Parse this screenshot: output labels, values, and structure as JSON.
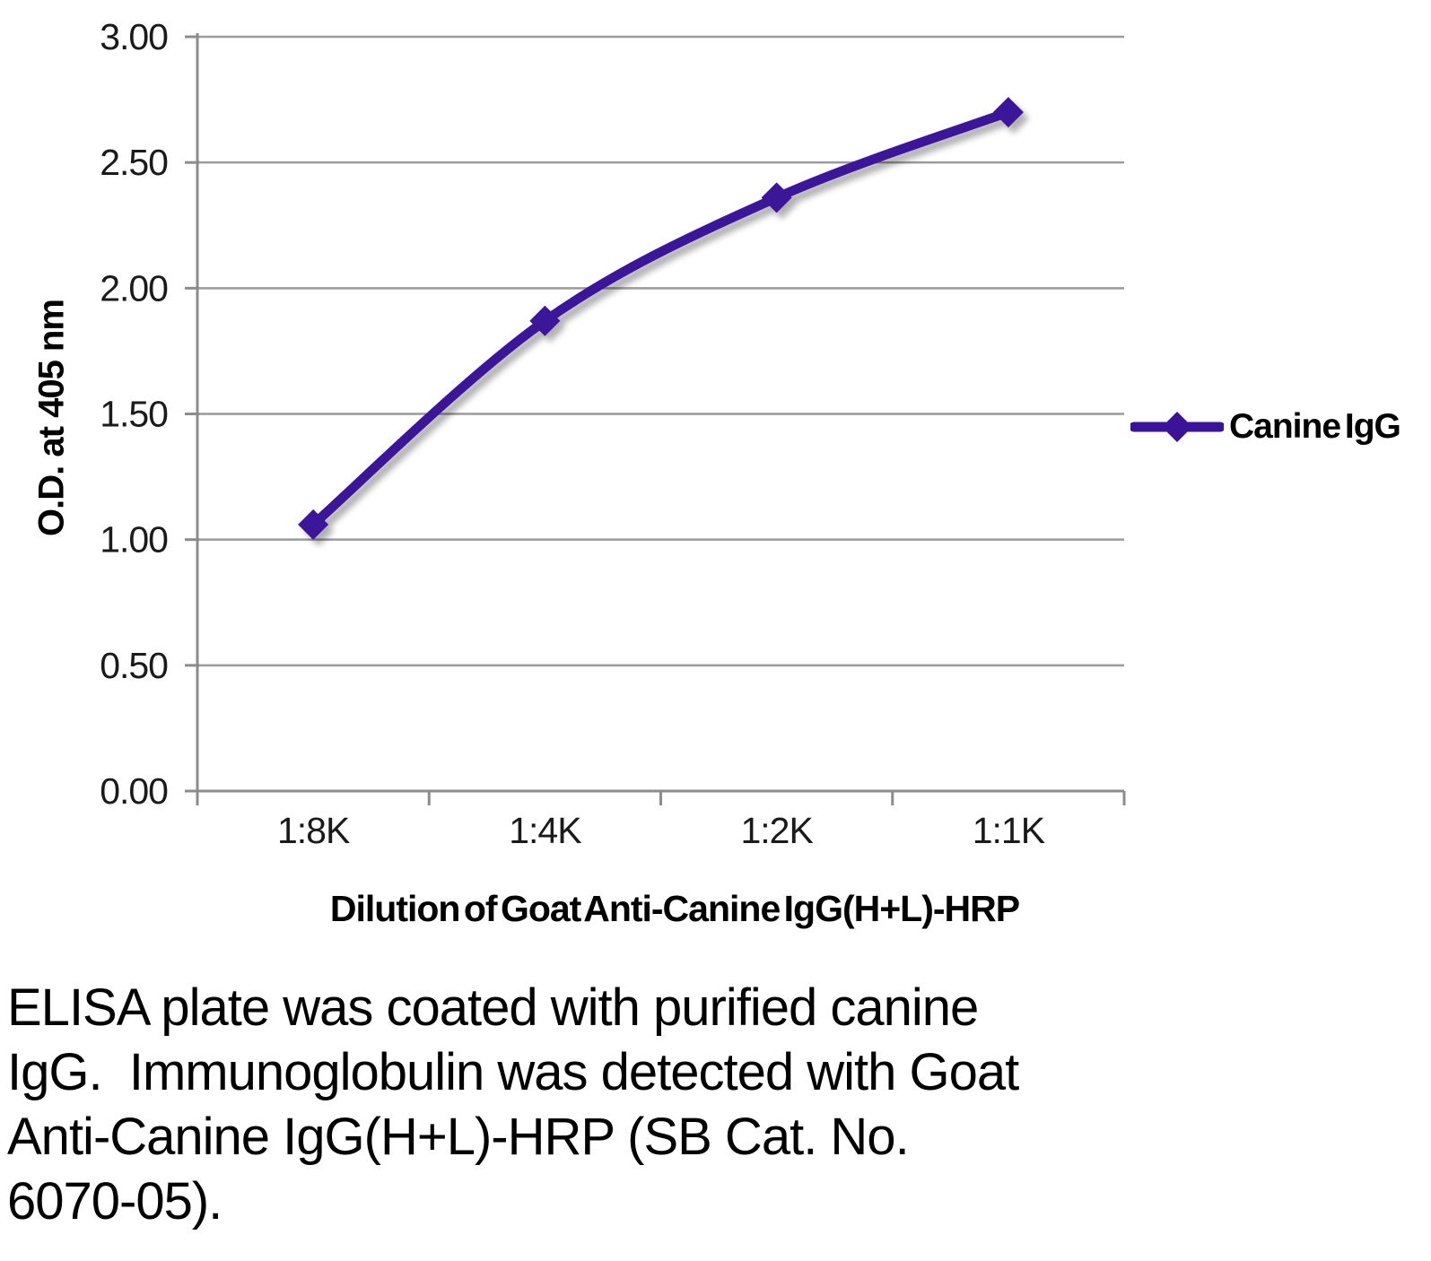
{
  "chart_data": {
    "type": "line",
    "categories": [
      "1:8K",
      "1:4K",
      "1:2K",
      "1:1K"
    ],
    "series": [
      {
        "name": "Canine IgG",
        "values": [
          1.06,
          1.87,
          2.36,
          2.7
        ],
        "color": "#3B1399"
      }
    ],
    "title": "",
    "xlabel": "Dilution of Goat Anti-Canine IgG(H+L)-HRP",
    "ylabel": "O.D. at 405 nm",
    "ylim": [
      0,
      3
    ],
    "ytick_step": 0.5,
    "ytick_labels": [
      "0.00",
      "0.50",
      "1.00",
      "1.50",
      "2.00",
      "2.50",
      "3.00"
    ],
    "grid": "horizontal-only",
    "legend_position": "right",
    "marker_shape": "diamond"
  },
  "legend": {
    "label": "Canine IgG"
  },
  "caption": {
    "text": "ELISA plate was coated with purified canine\nIgG.  Immunoglobulin was detected with Goat\nAnti-Canine IgG(H+L)-HRP (SB Cat. No.\n6070-05)."
  },
  "colors": {
    "series": "#3B1399",
    "gridline": "#9B9B9B",
    "axis": "#8C8C8C",
    "tick_text": "#1A1A1A"
  }
}
